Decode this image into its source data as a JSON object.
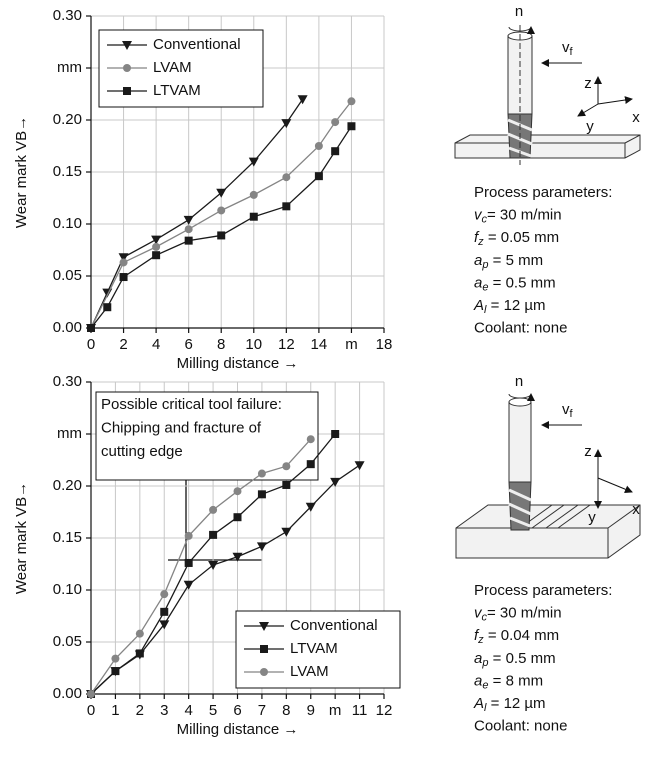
{
  "chart_data": [
    {
      "type": "line",
      "y_label": "Wear mark VB→",
      "x_label": "Milling distance →",
      "xlim": [
        0,
        18
      ],
      "xticks": [
        0,
        2,
        4,
        6,
        8,
        10,
        12,
        14,
        {
          "value": 16,
          "label": "m"
        },
        18
      ],
      "ylim": [
        0,
        0.3
      ],
      "yticks": [
        {
          "value": 0,
          "label": "0.00"
        },
        {
          "value": 0.05,
          "label": "0.05"
        },
        {
          "value": 0.1,
          "label": "0.10"
        },
        {
          "value": 0.15,
          "label": "0.15"
        },
        {
          "value": 0.2,
          "label": "0.20"
        },
        {
          "value": 0.25,
          "label": "mm"
        },
        {
          "value": 0.3,
          "label": "0.30"
        }
      ],
      "grid": true,
      "legend": "upper left",
      "series": [
        {
          "name": "Conventional",
          "color": "#1a1a1a",
          "marker": "triangle-down",
          "x": [
            0,
            1,
            2,
            4,
            6,
            8,
            10,
            12,
            13
          ],
          "values": [
            0,
            0.034,
            0.068,
            0.085,
            0.104,
            0.13,
            0.16,
            0.197,
            0.22
          ]
        },
        {
          "name": "LVAM",
          "color": "#858585",
          "marker": "circle",
          "x": [
            0,
            2,
            4,
            6,
            8,
            10,
            12,
            14,
            15,
            16
          ],
          "values": [
            0,
            0.063,
            0.078,
            0.095,
            0.113,
            0.128,
            0.145,
            0.175,
            0.198,
            0.218
          ]
        },
        {
          "name": "LTVAM",
          "color": "#1a1a1a",
          "marker": "square",
          "x": [
            0,
            1,
            2,
            4,
            6,
            8,
            10,
            12,
            14,
            15,
            16
          ],
          "values": [
            0,
            0.02,
            0.049,
            0.07,
            0.084,
            0.089,
            0.107,
            0.117,
            0.146,
            0.17,
            0.194
          ]
        }
      ]
    },
    {
      "type": "line",
      "y_label": "Wear mark VB→",
      "x_label": "Milling distance →",
      "xlim": [
        0,
        12
      ],
      "xticks": [
        0,
        1,
        2,
        3,
        4,
        5,
        6,
        7,
        8,
        9,
        {
          "value": 10,
          "label": "m"
        },
        11,
        12
      ],
      "ylim": [
        0,
        0.3
      ],
      "yticks": [
        {
          "value": 0,
          "label": "0.00"
        },
        {
          "value": 0.05,
          "label": "0.05"
        },
        {
          "value": 0.1,
          "label": "0.10"
        },
        {
          "value": 0.15,
          "label": "0.15"
        },
        {
          "value": 0.2,
          "label": "0.20"
        },
        {
          "value": 0.25,
          "label": "mm"
        },
        {
          "value": 0.3,
          "label": "0.30"
        }
      ],
      "grid": true,
      "legend": "lower right",
      "annotation": [
        "Possible critical tool failure:",
        "Chipping and fracture of",
        "cutting edge"
      ],
      "series": [
        {
          "name": "Conventional",
          "color": "#1a1a1a",
          "marker": "triangle-down",
          "x": [
            0,
            1,
            2,
            3,
            4,
            5,
            6,
            7,
            8,
            9,
            10,
            11
          ],
          "values": [
            0,
            0.022,
            0.038,
            0.067,
            0.105,
            0.124,
            0.132,
            0.142,
            0.156,
            0.18,
            0.204,
            0.22
          ]
        },
        {
          "name": "LTVAM",
          "color": "#1a1a1a",
          "marker": "square",
          "x": [
            0,
            1,
            2,
            3,
            4,
            5,
            6,
            7,
            8,
            9,
            10
          ],
          "values": [
            0,
            0.022,
            0.039,
            0.079,
            0.126,
            0.153,
            0.17,
            0.192,
            0.201,
            0.221,
            0.25
          ]
        },
        {
          "name": "LVAM",
          "color": "#858585",
          "marker": "circle",
          "x": [
            0,
            1,
            2,
            3,
            4,
            5,
            6,
            7,
            8,
            9
          ],
          "values": [
            0,
            0.034,
            0.058,
            0.096,
            0.152,
            0.177,
            0.195,
            0.212,
            0.219,
            0.245
          ]
        }
      ]
    }
  ],
  "process_panels": [
    {
      "n": "n",
      "vf": {
        "symbol": "v",
        "subscript": "f"
      },
      "axes": [
        "z",
        "y",
        "x"
      ],
      "heading": "Process parameters:",
      "parameters": [
        {
          "symbol": "v",
          "subscript": "c",
          "rest": "= 30 m/min"
        },
        {
          "symbol": "f",
          "subscript": "z",
          "rest": " = 0.05 mm"
        },
        {
          "symbol": "a",
          "subscript": "p",
          "rest": " = 5 mm"
        },
        {
          "symbol": "a",
          "subscript": "e",
          "rest": " = 0.5 mm"
        },
        {
          "symbol": "A",
          "subscript": "l",
          "rest": " = 12 µm"
        }
      ],
      "coolant": "Coolant: none"
    },
    {
      "n": "n",
      "vf": {
        "symbol": "v",
        "subscript": "f"
      },
      "axes": [
        "z",
        "y",
        "x"
      ],
      "heading": "Process parameters:",
      "parameters": [
        {
          "symbol": "v",
          "subscript": "c",
          "rest": "= 30 m/min"
        },
        {
          "symbol": "f",
          "subscript": "z",
          "rest": " = 0.04 mm"
        },
        {
          "symbol": "a",
          "subscript": "p",
          "rest": " = 0.5 mm"
        },
        {
          "symbol": "a",
          "subscript": "e",
          "rest": " = 8 mm"
        },
        {
          "symbol": "A",
          "subscript": "l",
          "rest": " = 12 µm"
        }
      ],
      "coolant": "Coolant: none"
    }
  ]
}
